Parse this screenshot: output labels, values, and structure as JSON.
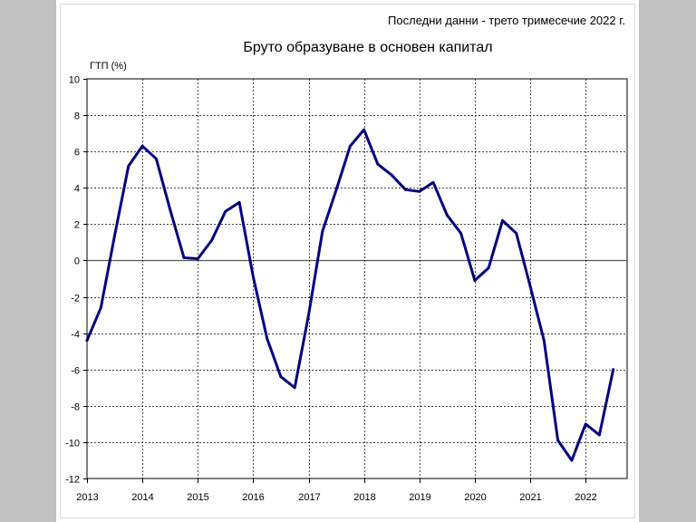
{
  "chart_data": {
    "type": "line",
    "note": "Последни данни - трето тримесечие 2022 г.",
    "title": "Бруто образуване в основен капитал",
    "ylabel": "ГТП (%)",
    "xlabel": "",
    "ylim": [
      -12,
      10
    ],
    "yticks": [
      10,
      8,
      6,
      4,
      2,
      0,
      -2,
      -4,
      -6,
      -8,
      -10,
      -12
    ],
    "xlim": [
      2013,
      2022.75
    ],
    "xticks": [
      "2013",
      "2014",
      "2015",
      "2016",
      "2017",
      "2018",
      "2019",
      "2020",
      "2021",
      "2022"
    ],
    "grid": true,
    "line_color": "#000080",
    "series": [
      {
        "x": [
          2013.0,
          2013.25,
          2013.5,
          2013.75,
          2014.0,
          2014.25,
          2014.5,
          2014.75,
          2015.0,
          2015.25,
          2015.5,
          2015.75,
          2016.0,
          2016.25,
          2016.5,
          2016.75,
          2017.0,
          2017.25,
          2017.5,
          2017.75,
          2018.0,
          2018.25,
          2018.5,
          2018.75,
          2019.0,
          2019.25,
          2019.5,
          2019.75,
          2020.0,
          2020.25,
          2020.5,
          2020.75,
          2021.0,
          2021.25,
          2021.5,
          2021.75,
          2022.0,
          2022.25,
          2022.5
        ],
        "values": [
          -4.4,
          -2.6,
          1.4,
          5.2,
          6.3,
          5.6,
          2.8,
          0.15,
          0.1,
          1.1,
          2.7,
          3.2,
          -0.9,
          -4.3,
          -6.4,
          -7.0,
          -3.0,
          1.6,
          3.9,
          6.3,
          7.2,
          5.3,
          4.7,
          3.9,
          3.8,
          4.3,
          2.5,
          1.5,
          -1.1,
          -0.4,
          2.2,
          1.5,
          -1.4,
          -4.4,
          -9.9,
          -11.0,
          -9.0,
          -9.6,
          -6.0
        ]
      }
    ]
  }
}
